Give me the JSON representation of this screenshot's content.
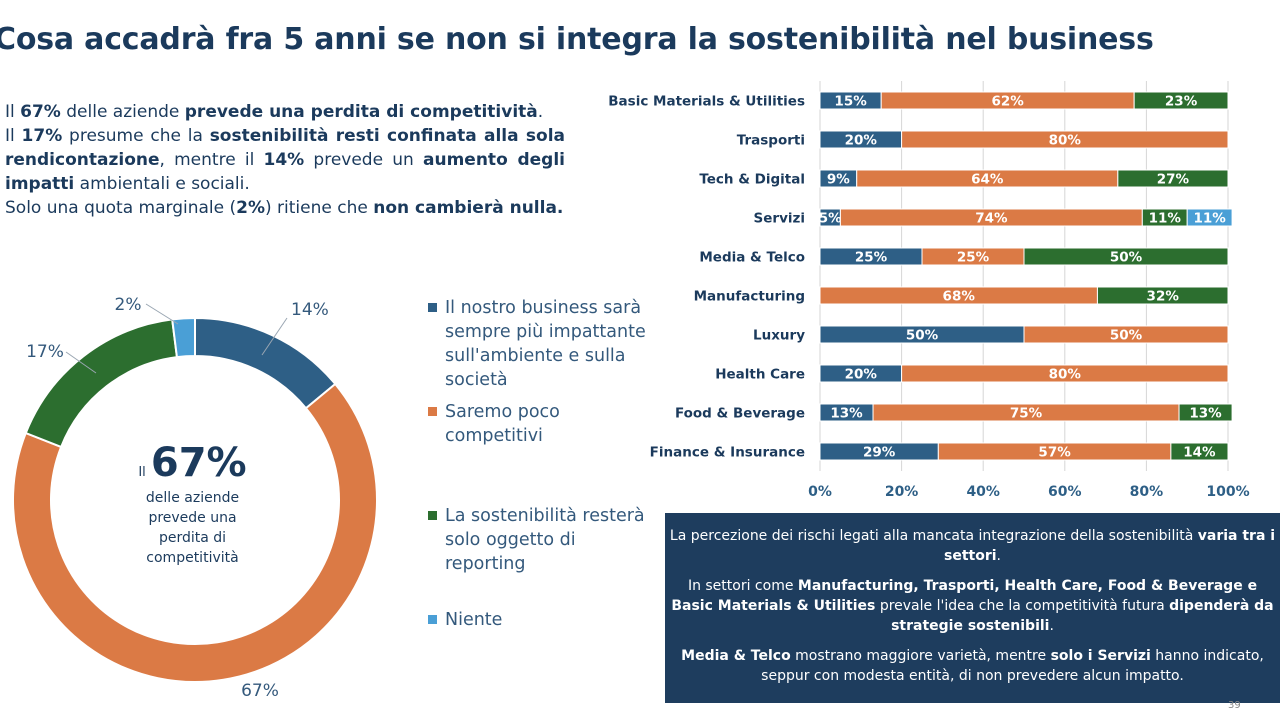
{
  "title": "Cosa accadrà fra 5 anni se non si integra la sostenibilità nel business",
  "intro": {
    "p1": [
      {
        "t": "Il ",
        "b": false
      },
      {
        "t": "67%",
        "b": true
      },
      {
        "t": " delle aziende ",
        "b": false
      },
      {
        "t": "prevede una perdita di competitività",
        "b": true
      },
      {
        "t": ".",
        "b": false
      }
    ],
    "p2": [
      {
        "t": "Il ",
        "b": false
      },
      {
        "t": "17%",
        "b": true
      },
      {
        "t": " presume che la ",
        "b": false
      },
      {
        "t": "sostenibilità resti confinata alla sola rendicontazione",
        "b": true
      },
      {
        "t": ", mentre il ",
        "b": false
      },
      {
        "t": "14%",
        "b": true
      },
      {
        "t": " prevede un ",
        "b": false
      },
      {
        "t": "aumento degli impatti",
        "b": true
      },
      {
        "t": " ambientali e sociali.",
        "b": false
      }
    ],
    "p3": [
      {
        "t": "Solo una quota marginale (",
        "b": false
      },
      {
        "t": "2%",
        "b": true
      },
      {
        "t": ") ritiene che ",
        "b": false
      },
      {
        "t": "non cambierà nulla.",
        "b": true
      }
    ]
  },
  "donut_center": {
    "pre": "Il",
    "big": "67%",
    "desc_lines": [
      "delle aziende",
      "prevede una",
      "perdita di",
      "competitività"
    ]
  },
  "colors": {
    "blue": "#2e5f86",
    "orange": "#db7a45",
    "green": "#2c6e2f",
    "lightblue": "#4a9fd6",
    "navy": "#1e3d5e"
  },
  "chart_data": [
    {
      "type": "pie",
      "variant": "donut",
      "slices": [
        {
          "label": "Il nostro business sarà sempre più impattante sull'ambiente e sulla società",
          "value": 14,
          "value_label": "14%",
          "color": "#2e5f86"
        },
        {
          "label": "Saremo poco competitivi",
          "value": 67,
          "value_label": "67%",
          "color": "#db7a45"
        },
        {
          "label": "La sostenibilità resterà solo oggetto di reporting",
          "value": 17,
          "value_label": "17%",
          "color": "#2c6e2f"
        },
        {
          "label": "Niente",
          "value": 2,
          "value_label": "2%",
          "color": "#4a9fd6"
        }
      ],
      "legend_placement": "right"
    },
    {
      "type": "bar",
      "orientation": "horizontal",
      "stacked": true,
      "normalized": true,
      "categories": [
        "Basic Materials & Utilities",
        "Trasporti",
        "Tech & Digital",
        "Servizi",
        "Media & Telco",
        "Manufacturing",
        "Luxury",
        "Health Care",
        "Food & Beverage",
        "Finance & Insurance"
      ],
      "series": [
        {
          "color": "#2e5f86",
          "values": [
            15,
            20,
            9,
            5,
            25,
            0,
            50,
            20,
            13,
            29
          ],
          "labels": [
            "15%",
            "20%",
            "9%",
            "5%",
            "25%",
            "",
            "50%",
            "20%",
            "13%",
            "29%"
          ]
        },
        {
          "color": "#db7a45",
          "values": [
            62,
            80,
            64,
            74,
            25,
            68,
            50,
            80,
            75,
            57
          ],
          "labels": [
            "62%",
            "80%",
            "64%",
            "74%",
            "25%",
            "68%",
            "50%",
            "80%",
            "75%",
            "57%"
          ]
        },
        {
          "color": "#2c6e2f",
          "values": [
            23,
            0,
            27,
            11,
            50,
            32,
            0,
            0,
            13,
            14
          ],
          "labels": [
            "23%",
            "",
            "27%",
            "11%",
            "50%",
            "32%",
            "",
            "",
            "13%",
            "14%"
          ]
        },
        {
          "color": "#4a9fd6",
          "values": [
            0,
            0,
            0,
            11,
            0,
            0,
            0,
            0,
            0,
            0
          ],
          "labels": [
            "",
            "",
            "",
            "11%",
            "",
            "",
            "",
            "",
            "",
            ""
          ]
        }
      ],
      "xlim": [
        0,
        100
      ],
      "xticks": [
        "0%",
        "20%",
        "40%",
        "60%",
        "80%",
        "100%"
      ],
      "grid": true
    }
  ],
  "panel": {
    "p1": [
      {
        "t": "La percezione dei rischi legati alla mancata integrazione della sostenibilità ",
        "b": false
      },
      {
        "t": "varia tra i settori",
        "b": true
      },
      {
        "t": ".",
        "b": false
      }
    ],
    "p2": [
      {
        "t": "In settori come ",
        "b": false
      },
      {
        "t": "Manufacturing, Trasporti, Health Care, Food & Beverage e Basic Materials & Utilities",
        "b": true
      },
      {
        "t": " prevale l'idea che la competitività futura ",
        "b": false
      },
      {
        "t": "dipenderà da strategie sostenibili",
        "b": true
      },
      {
        "t": ".",
        "b": false
      }
    ],
    "p3": [
      {
        "t": "Media & Telco",
        "b": true
      },
      {
        "t": " mostrano maggiore varietà, mentre ",
        "b": false
      },
      {
        "t": "solo i Servizi",
        "b": true
      },
      {
        "t": " hanno indicato, seppur con modesta entità, di non  prevedere alcun impatto.",
        "b": false
      }
    ]
  },
  "page_number": "39"
}
